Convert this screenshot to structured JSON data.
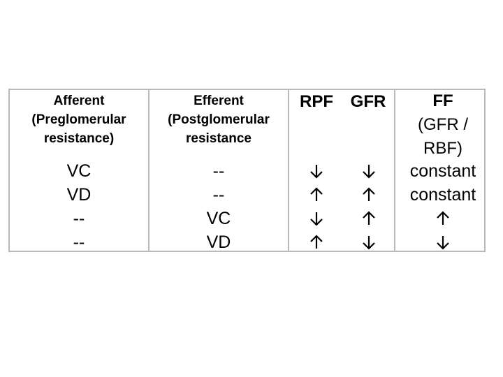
{
  "table": {
    "headers": {
      "afferent": [
        "Afferent",
        "(Preglomerular",
        "resistance)"
      ],
      "efferent": [
        "Efferent",
        "(Postglomerular",
        "resistance"
      ],
      "rpf": "RPF",
      "gfr": "GFR",
      "ff": [
        "FF",
        "(GFR /",
        "RBF)"
      ]
    },
    "rows": [
      {
        "afferent": "VC",
        "efferent": "--",
        "rpf": "down",
        "gfr": "down",
        "ff": "constant"
      },
      {
        "afferent": "VD",
        "efferent": "--",
        "rpf": "up",
        "gfr": "up",
        "ff": "constant"
      },
      {
        "afferent": "--",
        "efferent": "VC",
        "rpf": "down",
        "gfr": "up",
        "ff": "up"
      },
      {
        "afferent": "--",
        "efferent": "VD",
        "rpf": "up",
        "gfr": "down",
        "ff": "down"
      }
    ]
  }
}
